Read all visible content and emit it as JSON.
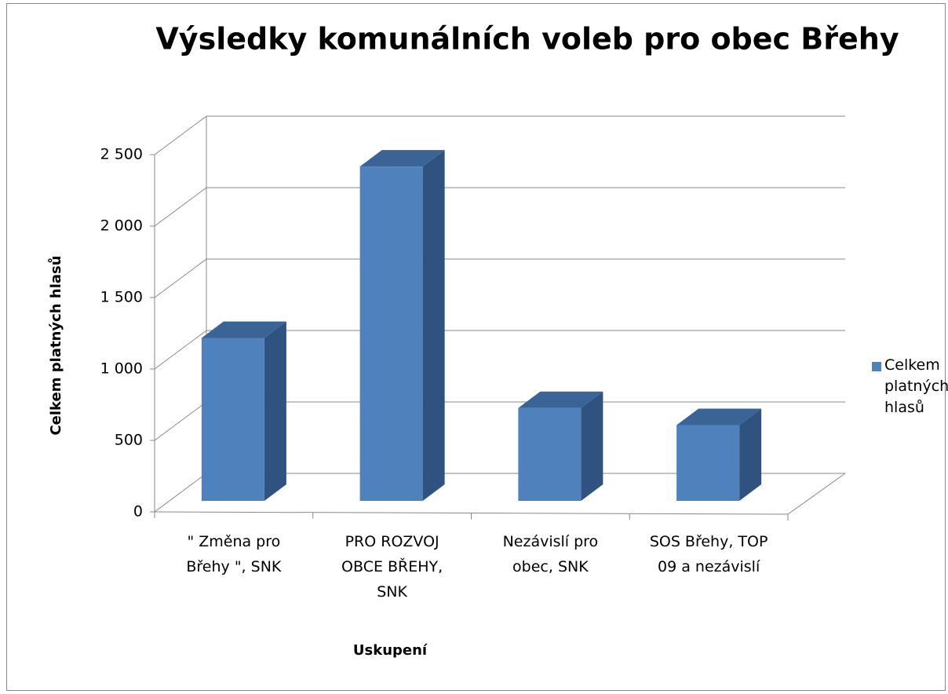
{
  "chart_data": {
    "type": "bar3d",
    "title": "Výsledky komunálních voleb pro obec Břehy",
    "x_label": "Uskupení",
    "y_label": "Celkem platných hlasů",
    "categories": [
      "\" Změna pro Břehy \", SNK",
      "PRO ROZVOJ OBCE BŘEHY, SNK",
      "Nezávislí pro obec, SNK",
      "SOS Břehy, TOP 09 a nezávislí"
    ],
    "series": [
      {
        "name": "Celkem platných hlasů",
        "color": "#4f81bd",
        "values": [
          1140,
          2340,
          650,
          530
        ]
      }
    ],
    "ylim": [
      0,
      2500
    ],
    "yticks": [
      0,
      500,
      {
        "value": 1000,
        "label": "1 000"
      },
      {
        "value": 1500,
        "label": "1 500"
      },
      {
        "value": 2000,
        "label": "2 000"
      },
      {
        "value": 2500,
        "label": "2 500"
      }
    ],
    "grid": true,
    "legend": "right"
  }
}
